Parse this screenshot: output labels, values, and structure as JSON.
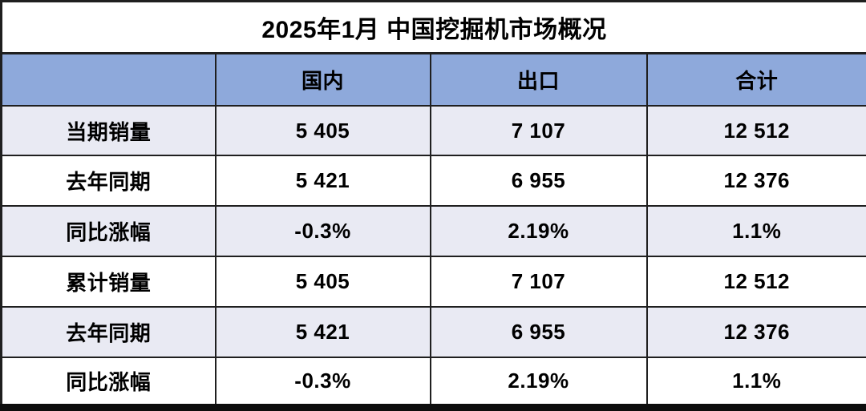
{
  "title": "2025年1月 中国挖掘机市场概况",
  "table": {
    "columns": [
      "",
      "国内",
      "出口",
      "合计"
    ],
    "rows": [
      {
        "label": "当期销量",
        "values": [
          "5 405",
          "7 107",
          "12 512"
        ]
      },
      {
        "label": "去年同期",
        "values": [
          "5 421",
          "6 955",
          "12 376"
        ]
      },
      {
        "label": "同比涨幅",
        "values": [
          "-0.3%",
          "2.19%",
          "1.1%"
        ]
      },
      {
        "label": "累计销量",
        "values": [
          "5 405",
          "7 107",
          "12 512"
        ]
      },
      {
        "label": "去年同期",
        "values": [
          "5 421",
          "6 955",
          "12 376"
        ]
      },
      {
        "label": "同比涨幅",
        "values": [
          "-0.3%",
          "2.19%",
          "1.1%"
        ]
      }
    ]
  },
  "colors": {
    "header_bg": "#8EA9DB",
    "band_row_bg": "#E9EAF3",
    "plain_row_bg": "#FFFFFF",
    "border": "#1F1F1F",
    "text": "#000000",
    "title_bg": "#FFFFFF"
  },
  "chart_data": {
    "type": "table",
    "title": "2025年1月 中国挖掘机市场概况",
    "categories": [
      "国内",
      "出口",
      "合计"
    ],
    "series": [
      {
        "name": "当期销量",
        "values": [
          5405,
          7107,
          12512
        ]
      },
      {
        "name": "去年同期",
        "values": [
          5421,
          6955,
          12376
        ]
      },
      {
        "name": "同比涨幅",
        "values": [
          "-0.3%",
          "2.19%",
          "1.1%"
        ]
      },
      {
        "name": "累计销量",
        "values": [
          5405,
          7107,
          12512
        ]
      },
      {
        "name": "去年同期",
        "values": [
          5421,
          6955,
          12376
        ]
      },
      {
        "name": "同比涨幅",
        "values": [
          "-0.3%",
          "2.19%",
          "1.1%"
        ]
      }
    ],
    "layout": {
      "banded_rows": true,
      "header_position": "top",
      "number_format": "space thousands separator"
    }
  }
}
